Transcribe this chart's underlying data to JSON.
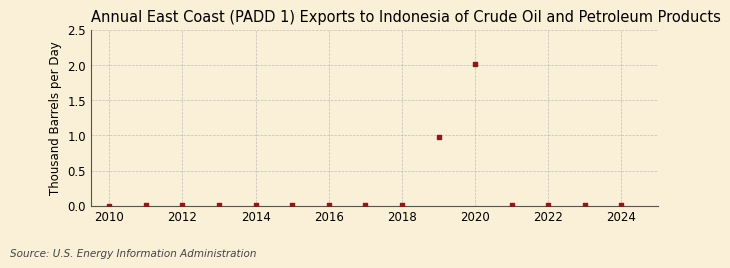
{
  "title": "Annual East Coast (PADD 1) Exports to Indonesia of Crude Oil and Petroleum Products",
  "ylabel": "Thousand Barrels per Day",
  "source": "Source: U.S. Energy Information Administration",
  "background_color": "#faefd7",
  "years": [
    2010,
    2011,
    2012,
    2013,
    2014,
    2015,
    2016,
    2017,
    2018,
    2019,
    2020,
    2021,
    2022,
    2023,
    2024
  ],
  "values": [
    0.0,
    0.01,
    0.01,
    0.01,
    0.01,
    0.01,
    0.01,
    0.01,
    0.01,
    0.97,
    2.02,
    0.01,
    0.01,
    0.01,
    0.01
  ],
  "marker_color": "#8b1a1a",
  "grid_color": "#aaaaaa",
  "xlim": [
    2009.5,
    2025.0
  ],
  "ylim": [
    0.0,
    2.5
  ],
  "yticks": [
    0.0,
    0.5,
    1.0,
    1.5,
    2.0,
    2.5
  ],
  "xticks": [
    2010,
    2012,
    2014,
    2016,
    2018,
    2020,
    2022,
    2024
  ],
  "title_fontsize": 10.5,
  "axis_fontsize": 8.5,
  "tick_fontsize": 8.5,
  "source_fontsize": 7.5
}
